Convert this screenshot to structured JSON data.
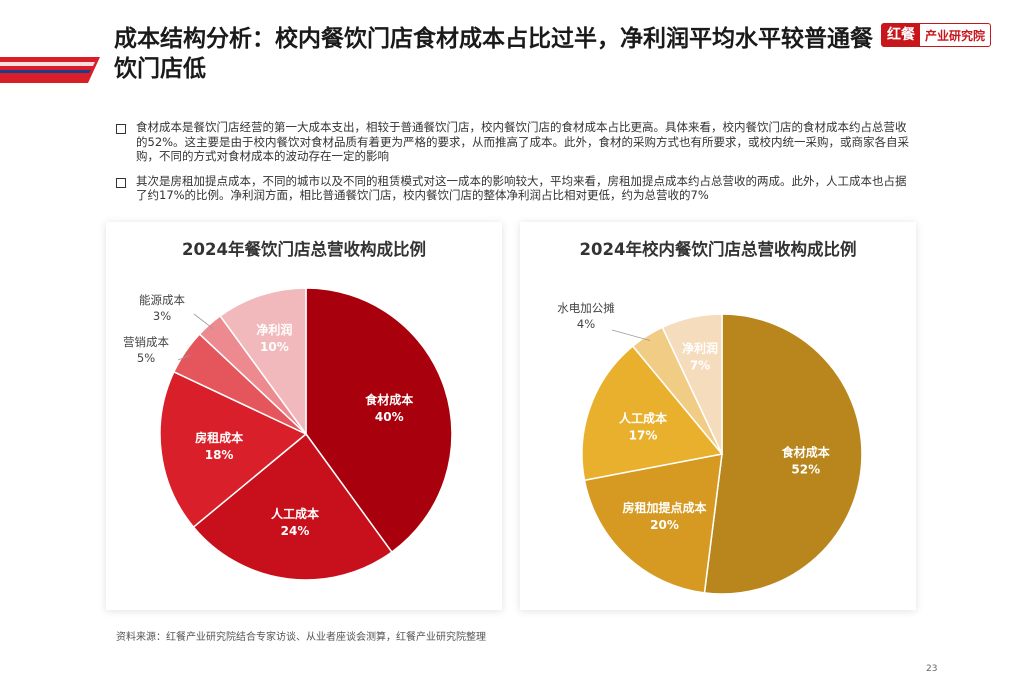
{
  "title": "成本结构分析：校内餐饮门店食材成本占比过半，净利润平均水平较普通餐饮门店低",
  "brand": {
    "mark": "红餐",
    "name": "产业研究院"
  },
  "bullets": [
    "食材成本是餐饮门店经营的第一大成本支出，相较于普通餐饮门店，校内餐饮门店的食材成本占比更高。具体来看，校内餐饮门店的食材成本约占总营收的52%。这主要是由于校内餐饮对食材品质有着更为严格的要求，从而推高了成本。此外，食材的采购方式也有所要求，或校内统一采购，或商家各自采购，不同的方式对食材成本的波动存在一定的影响",
    "其次是房租加提点成本，不同的城市以及不同的租赁模式对这一成本的影响较大，平均来看，房租加提点成本约占总营收的两成。此外，人工成本也占据了约17%的比例。净利润方面，相比普通餐饮门店，校内餐饮门店的整体净利润占比相对更低，约为总营收的7%"
  ],
  "chart_data": [
    {
      "type": "pie",
      "title": "2024年餐饮门店总营收构成比例",
      "slices": [
        {
          "name": "食材成本",
          "value": 40,
          "label": "40%",
          "color": "#a8000c",
          "label_pos": "inside"
        },
        {
          "name": "人工成本",
          "value": 24,
          "label": "24%",
          "color": "#c8101c",
          "label_pos": "inside"
        },
        {
          "name": "房租成本",
          "value": 18,
          "label": "18%",
          "color": "#d9202a",
          "label_pos": "inside"
        },
        {
          "name": "营销成本",
          "value": 5,
          "label": "5%",
          "color": "#e4555c",
          "label_pos": "outside"
        },
        {
          "name": "能源成本",
          "value": 3,
          "label": "3%",
          "color": "#ec8a8f",
          "label_pos": "outside"
        },
        {
          "name": "净利润",
          "value": 10,
          "label": "10%",
          "color": "#f2b9bc",
          "label_pos": "inside"
        }
      ]
    },
    {
      "type": "pie",
      "title": "2024年校内餐饮门店总营收构成比例",
      "slices": [
        {
          "name": "食材成本",
          "value": 52,
          "label": "52%",
          "color": "#b8861c",
          "label_pos": "inside"
        },
        {
          "name": "房租加提点成本",
          "value": 20,
          "label": "20%",
          "color": "#d69a22",
          "label_pos": "inside"
        },
        {
          "name": "人工成本",
          "value": 17,
          "label": "17%",
          "color": "#e9b02e",
          "label_pos": "inside"
        },
        {
          "name": "水电加公摊",
          "value": 4,
          "label": "4%",
          "color": "#f1cc85",
          "label_pos": "outside"
        },
        {
          "name": "净利润",
          "value": 7,
          "label": "7%",
          "color": "#f5dcbc",
          "label_pos": "inside"
        }
      ]
    }
  ],
  "source": "资料来源：红餐产业研究院结合专家访谈、从业者座谈会测算，红餐产业研究院整理",
  "page_number": "23"
}
